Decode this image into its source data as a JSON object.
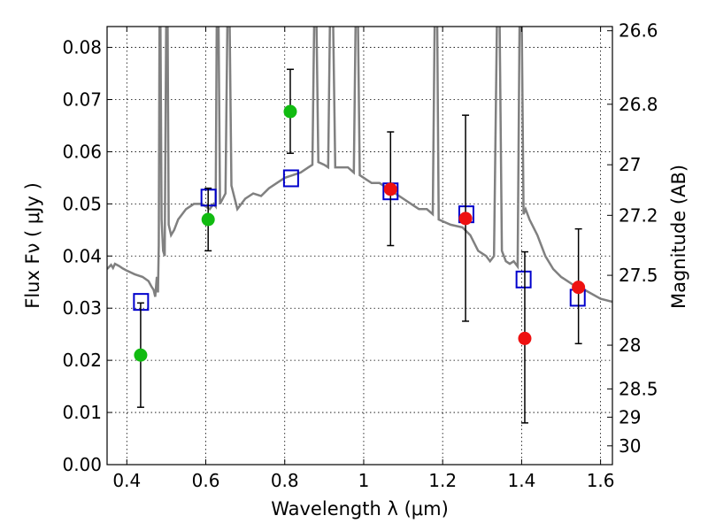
{
  "chart_data": {
    "type": "scatter",
    "title": "",
    "xlabel": "Wavelength  λ (μm)",
    "ylabel": "Flux  Fν ( μJy )",
    "ylabel_right": "Magnitude (AB)",
    "xlim": [
      0.35,
      1.63
    ],
    "ylim": [
      0.0,
      0.084
    ],
    "grid": true,
    "x_ticks": [
      0.4,
      0.6,
      0.8,
      1.0,
      1.2,
      1.4,
      1.6
    ],
    "x_tick_labels": [
      "0.4",
      "0.6",
      "0.8",
      "1",
      "1.2",
      "1.4",
      "1.6"
    ],
    "y_ticks": [
      0.0,
      0.01,
      0.02,
      0.03,
      0.04,
      0.05,
      0.06,
      0.07,
      0.08
    ],
    "y_tick_labels": [
      "0.00",
      "0.01",
      "0.02",
      "0.03",
      "0.04",
      "0.05",
      "0.06",
      "0.07",
      "0.08"
    ],
    "right_axis_ticks": [
      {
        "label": "26.6",
        "flux": 0.0832
      },
      {
        "label": "26.8",
        "flux": 0.0691
      },
      {
        "label": "27",
        "flux": 0.0575
      },
      {
        "label": "27.2",
        "flux": 0.0478
      },
      {
        "label": "27.5",
        "flux": 0.0363
      },
      {
        "label": "28",
        "flux": 0.0229
      },
      {
        "label": "28.5",
        "flux": 0.0145
      },
      {
        "label": "29",
        "flux": 0.0091
      },
      {
        "label": "30",
        "flux": 0.0036
      }
    ],
    "colors": {
      "sed": "#808080",
      "model": "#0000cc",
      "green": "#11bb11",
      "red": "#ee1111",
      "errorbar": "#000000"
    },
    "series": [
      {
        "marker": "green-circle",
        "points": [
          {
            "x": 0.435,
            "y": 0.021,
            "err_lo": 0.011,
            "err_hi": 0.031
          },
          {
            "x": 0.606,
            "y": 0.047,
            "err_lo": 0.041,
            "err_hi": 0.053
          },
          {
            "x": 0.814,
            "y": 0.0677,
            "err_lo": 0.0597,
            "err_hi": 0.0758
          }
        ]
      },
      {
        "marker": "red-circle",
        "points": [
          {
            "x": 1.068,
            "y": 0.0528,
            "err_lo": 0.042,
            "err_hi": 0.0638
          },
          {
            "x": 1.258,
            "y": 0.0472,
            "err_lo": 0.0275,
            "err_hi": 0.067
          },
          {
            "x": 1.408,
            "y": 0.0242,
            "err_lo": 0.008,
            "err_hi": 0.0408
          },
          {
            "x": 1.544,
            "y": 0.034,
            "err_lo": 0.0232,
            "err_hi": 0.0452
          }
        ]
      },
      {
        "marker": "blue-open-square",
        "points": [
          {
            "x": 0.436,
            "y": 0.0312
          },
          {
            "x": 0.607,
            "y": 0.0512
          },
          {
            "x": 0.816,
            "y": 0.0549
          },
          {
            "x": 1.068,
            "y": 0.0524
          },
          {
            "x": 1.26,
            "y": 0.048
          },
          {
            "x": 1.405,
            "y": 0.0355
          },
          {
            "x": 1.542,
            "y": 0.032
          }
        ]
      },
      {
        "marker": "grey-line",
        "points": [
          [
            0.35,
            0.0375
          ],
          [
            0.36,
            0.0383
          ],
          [
            0.365,
            0.0377
          ],
          [
            0.37,
            0.0385
          ],
          [
            0.38,
            0.0381
          ],
          [
            0.39,
            0.0376
          ],
          [
            0.4,
            0.0372
          ],
          [
            0.42,
            0.0365
          ],
          [
            0.44,
            0.036
          ],
          [
            0.455,
            0.0352
          ],
          [
            0.462,
            0.0342
          ],
          [
            0.468,
            0.0335
          ],
          [
            0.472,
            0.0322
          ],
          [
            0.476,
            0.036
          ],
          [
            0.479,
            0.033
          ],
          [
            0.481,
            0.042
          ],
          [
            0.483,
            0.0875
          ],
          [
            0.485,
            0.0875
          ],
          [
            0.488,
            0.047
          ],
          [
            0.492,
            0.041
          ],
          [
            0.496,
            0.04
          ],
          [
            0.5,
            0.0875
          ],
          [
            0.503,
            0.0875
          ],
          [
            0.506,
            0.046
          ],
          [
            0.512,
            0.044
          ],
          [
            0.52,
            0.045
          ],
          [
            0.53,
            0.047
          ],
          [
            0.55,
            0.049
          ],
          [
            0.57,
            0.05
          ],
          [
            0.59,
            0.05
          ],
          [
            0.61,
            0.049
          ],
          [
            0.62,
            0.05
          ],
          [
            0.625,
            0.0495
          ],
          [
            0.628,
            0.0875
          ],
          [
            0.632,
            0.0875
          ],
          [
            0.636,
            0.05
          ],
          [
            0.65,
            0.052
          ],
          [
            0.655,
            0.0875
          ],
          [
            0.66,
            0.0875
          ],
          [
            0.665,
            0.0535
          ],
          [
            0.68,
            0.049
          ],
          [
            0.7,
            0.051
          ],
          [
            0.72,
            0.052
          ],
          [
            0.74,
            0.0515
          ],
          [
            0.76,
            0.053
          ],
          [
            0.78,
            0.054
          ],
          [
            0.8,
            0.055
          ],
          [
            0.82,
            0.0555
          ],
          [
            0.84,
            0.056
          ],
          [
            0.86,
            0.057
          ],
          [
            0.87,
            0.0575
          ],
          [
            0.875,
            0.0875
          ],
          [
            0.88,
            0.0875
          ],
          [
            0.885,
            0.058
          ],
          [
            0.9,
            0.0575
          ],
          [
            0.91,
            0.057
          ],
          [
            0.915,
            0.0875
          ],
          [
            0.922,
            0.0875
          ],
          [
            0.928,
            0.057
          ],
          [
            0.94,
            0.057
          ],
          [
            0.96,
            0.057
          ],
          [
            0.975,
            0.056
          ],
          [
            0.98,
            0.0875
          ],
          [
            0.985,
            0.0875
          ],
          [
            0.99,
            0.0555
          ],
          [
            1.0,
            0.055
          ],
          [
            1.02,
            0.054
          ],
          [
            1.04,
            0.054
          ],
          [
            1.06,
            0.053
          ],
          [
            1.08,
            0.052
          ],
          [
            1.1,
            0.051
          ],
          [
            1.12,
            0.05
          ],
          [
            1.14,
            0.049
          ],
          [
            1.16,
            0.049
          ],
          [
            1.175,
            0.048
          ],
          [
            1.18,
            0.0875
          ],
          [
            1.186,
            0.0875
          ],
          [
            1.19,
            0.047
          ],
          [
            1.22,
            0.046
          ],
          [
            1.25,
            0.0455
          ],
          [
            1.27,
            0.044
          ],
          [
            1.29,
            0.041
          ],
          [
            1.31,
            0.04
          ],
          [
            1.32,
            0.039
          ],
          [
            1.33,
            0.04
          ],
          [
            1.338,
            0.0875
          ],
          [
            1.344,
            0.0875
          ],
          [
            1.35,
            0.041
          ],
          [
            1.36,
            0.039
          ],
          [
            1.37,
            0.0385
          ],
          [
            1.38,
            0.039
          ],
          [
            1.39,
            0.038
          ],
          [
            1.395,
            0.0875
          ],
          [
            1.4,
            0.0875
          ],
          [
            1.405,
            0.048
          ],
          [
            1.41,
            0.049
          ],
          [
            1.42,
            0.047
          ],
          [
            1.44,
            0.044
          ],
          [
            1.45,
            0.042
          ],
          [
            1.46,
            0.04
          ],
          [
            1.48,
            0.0375
          ],
          [
            1.5,
            0.036
          ],
          [
            1.53,
            0.0345
          ],
          [
            1.56,
            0.0335
          ],
          [
            1.6,
            0.0318
          ],
          [
            1.63,
            0.0312
          ]
        ]
      }
    ]
  }
}
